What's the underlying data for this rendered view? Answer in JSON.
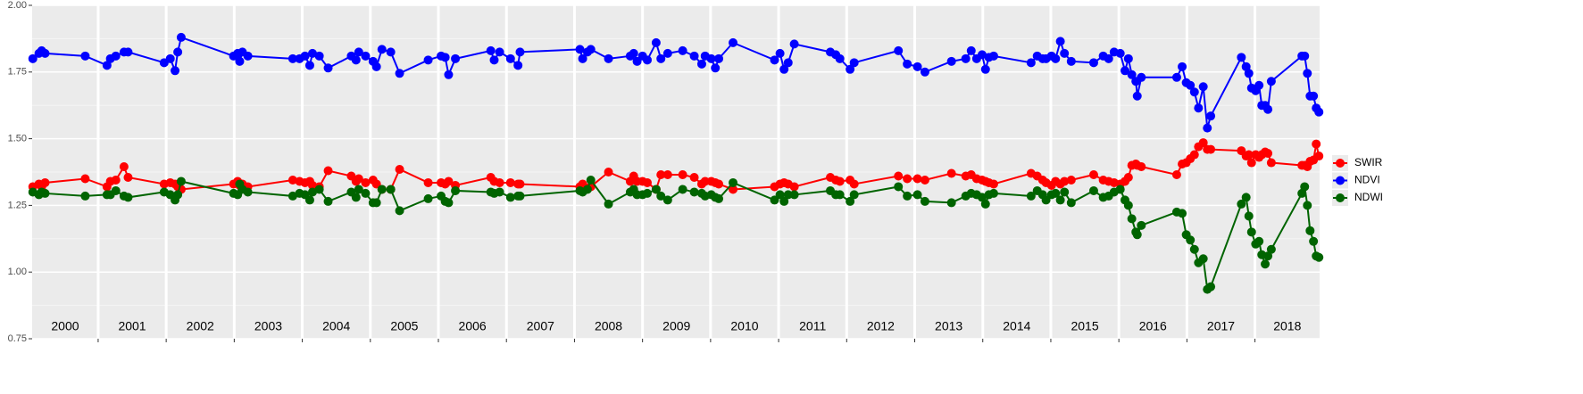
{
  "chart_data": {
    "type": "line",
    "x": [
      2000.04,
      2000.13,
      2000.17,
      2000.22,
      2000.81,
      2001.13,
      2001.18,
      2001.26,
      2001.38,
      2001.44,
      2001.97,
      2002.06,
      2002.13,
      2002.17,
      2002.22,
      2002.99,
      2003.05,
      2003.08,
      2003.12,
      2003.2,
      2003.86,
      2003.96,
      2004.04,
      2004.11,
      2004.15,
      2004.25,
      2004.38,
      2004.72,
      2004.79,
      2004.83,
      2004.93,
      2005.04,
      2005.09,
      2005.17,
      2005.3,
      2005.43,
      2005.85,
      2006.04,
      2006.1,
      2006.15,
      2006.25,
      2006.77,
      2006.82,
      2006.9,
      2007.06,
      2007.17,
      2007.2,
      2008.08,
      2008.12,
      2008.19,
      2008.24,
      2008.5,
      2008.82,
      2008.87,
      2008.92,
      2009.0,
      2009.07,
      2009.2,
      2009.27,
      2009.37,
      2009.59,
      2009.76,
      2009.87,
      2009.92,
      2010.01,
      2010.07,
      2010.12,
      2010.33,
      2010.94,
      2011.02,
      2011.08,
      2011.14,
      2011.23,
      2011.76,
      2011.84,
      2011.9,
      2012.05,
      2012.11,
      2012.76,
      2012.89,
      2013.04,
      2013.15,
      2013.54,
      2013.75,
      2013.83,
      2013.91,
      2013.99,
      2014.04,
      2014.09,
      2014.16,
      2014.71,
      2014.8,
      2014.88,
      2014.93,
      2015.01,
      2015.07,
      2015.14,
      2015.2,
      2015.3,
      2015.63,
      2015.77,
      2015.85,
      2015.93,
      2016.02,
      2016.09,
      2016.14,
      2016.19,
      2016.25,
      2016.27,
      2016.33,
      2016.85,
      2016.93,
      2016.99,
      2017.05,
      2017.11,
      2017.17,
      2017.24,
      2017.3,
      2017.35,
      2017.8,
      2017.87,
      2017.91,
      2017.95,
      2018.01,
      2018.06,
      2018.1,
      2018.15,
      2018.19,
      2018.24,
      2018.69,
      2018.73,
      2018.77,
      2018.81,
      2018.86,
      2018.9,
      2018.94
    ],
    "series": [
      {
        "name": "SWIR",
        "color": "#ff0000",
        "values": [
          1.32,
          1.33,
          1.32,
          1.335,
          1.35,
          1.32,
          1.34,
          1.345,
          1.395,
          1.355,
          1.33,
          1.335,
          1.33,
          1.32,
          1.31,
          1.33,
          1.34,
          1.325,
          1.33,
          1.32,
          1.345,
          1.34,
          1.335,
          1.34,
          1.325,
          1.32,
          1.38,
          1.36,
          1.34,
          1.35,
          1.335,
          1.345,
          1.33,
          1.31,
          1.31,
          1.385,
          1.335,
          1.335,
          1.33,
          1.34,
          1.325,
          1.355,
          1.34,
          1.335,
          1.335,
          1.33,
          1.33,
          1.32,
          1.33,
          1.315,
          1.32,
          1.375,
          1.34,
          1.36,
          1.34,
          1.34,
          1.335,
          1.31,
          1.365,
          1.365,
          1.365,
          1.355,
          1.33,
          1.34,
          1.34,
          1.335,
          1.33,
          1.31,
          1.32,
          1.33,
          1.335,
          1.33,
          1.32,
          1.355,
          1.345,
          1.34,
          1.345,
          1.33,
          1.36,
          1.35,
          1.35,
          1.345,
          1.37,
          1.36,
          1.365,
          1.35,
          1.345,
          1.34,
          1.335,
          1.33,
          1.37,
          1.36,
          1.345,
          1.335,
          1.325,
          1.34,
          1.33,
          1.34,
          1.345,
          1.365,
          1.345,
          1.34,
          1.335,
          1.33,
          1.34,
          1.355,
          1.4,
          1.405,
          1.4,
          1.395,
          1.365,
          1.405,
          1.41,
          1.425,
          1.44,
          1.47,
          1.485,
          1.46,
          1.46,
          1.455,
          1.435,
          1.44,
          1.41,
          1.44,
          1.43,
          1.44,
          1.45,
          1.445,
          1.41,
          1.4,
          1.4,
          1.395,
          1.415,
          1.42,
          1.48,
          1.435
        ]
      },
      {
        "name": "NDVI",
        "color": "#0000ff",
        "values": [
          1.8,
          1.82,
          1.83,
          1.82,
          1.81,
          1.775,
          1.8,
          1.81,
          1.825,
          1.825,
          1.785,
          1.8,
          1.755,
          1.825,
          1.88,
          1.81,
          1.82,
          1.79,
          1.825,
          1.81,
          1.8,
          1.8,
          1.81,
          1.775,
          1.82,
          1.81,
          1.765,
          1.81,
          1.795,
          1.825,
          1.81,
          1.79,
          1.77,
          1.835,
          1.825,
          1.745,
          1.795,
          1.81,
          1.805,
          1.74,
          1.8,
          1.83,
          1.795,
          1.825,
          1.8,
          1.775,
          1.825,
          1.835,
          1.8,
          1.825,
          1.835,
          1.8,
          1.81,
          1.82,
          1.79,
          1.81,
          1.795,
          1.86,
          1.8,
          1.82,
          1.83,
          1.81,
          1.78,
          1.81,
          1.8,
          1.765,
          1.8,
          1.86,
          1.795,
          1.82,
          1.76,
          1.785,
          1.855,
          1.825,
          1.815,
          1.8,
          1.76,
          1.785,
          1.83,
          1.78,
          1.77,
          1.75,
          1.79,
          1.8,
          1.83,
          1.8,
          1.815,
          1.76,
          1.805,
          1.81,
          1.785,
          1.81,
          1.8,
          1.8,
          1.81,
          1.8,
          1.865,
          1.82,
          1.79,
          1.785,
          1.81,
          1.8,
          1.825,
          1.82,
          1.755,
          1.8,
          1.74,
          1.715,
          1.66,
          1.73,
          1.73,
          1.77,
          1.71,
          1.7,
          1.675,
          1.615,
          1.695,
          1.54,
          1.585,
          1.805,
          1.77,
          1.745,
          1.69,
          1.68,
          1.7,
          1.625,
          1.625,
          1.61,
          1.715,
          1.81,
          1.81,
          1.745,
          1.66,
          1.66,
          1.615,
          1.6
        ]
      },
      {
        "name": "NDWI",
        "color": "#006400",
        "values": [
          1.3,
          1.29,
          1.3,
          1.295,
          1.285,
          1.29,
          1.29,
          1.305,
          1.285,
          1.28,
          1.3,
          1.29,
          1.27,
          1.29,
          1.34,
          1.295,
          1.29,
          1.33,
          1.31,
          1.3,
          1.285,
          1.295,
          1.29,
          1.27,
          1.3,
          1.31,
          1.265,
          1.3,
          1.28,
          1.31,
          1.295,
          1.26,
          1.26,
          1.31,
          1.31,
          1.23,
          1.275,
          1.285,
          1.265,
          1.26,
          1.305,
          1.3,
          1.295,
          1.3,
          1.28,
          1.285,
          1.285,
          1.305,
          1.3,
          1.31,
          1.345,
          1.255,
          1.3,
          1.31,
          1.29,
          1.29,
          1.295,
          1.31,
          1.285,
          1.27,
          1.31,
          1.3,
          1.295,
          1.285,
          1.29,
          1.28,
          1.275,
          1.335,
          1.27,
          1.29,
          1.265,
          1.29,
          1.29,
          1.305,
          1.29,
          1.29,
          1.265,
          1.29,
          1.32,
          1.285,
          1.29,
          1.265,
          1.26,
          1.285,
          1.295,
          1.29,
          1.28,
          1.255,
          1.29,
          1.295,
          1.285,
          1.305,
          1.29,
          1.27,
          1.29,
          1.295,
          1.27,
          1.3,
          1.26,
          1.305,
          1.28,
          1.285,
          1.3,
          1.31,
          1.27,
          1.25,
          1.2,
          1.15,
          1.14,
          1.175,
          1.225,
          1.22,
          1.14,
          1.12,
          1.085,
          1.035,
          1.05,
          0.935,
          0.945,
          1.255,
          1.28,
          1.21,
          1.15,
          1.105,
          1.115,
          1.065,
          1.03,
          1.06,
          1.085,
          1.295,
          1.32,
          1.25,
          1.155,
          1.115,
          1.06,
          1.055
        ]
      }
    ],
    "xlim": [
      2000.03,
      2018.95
    ],
    "xticks": [
      2001,
      2002,
      2003,
      2004,
      2005,
      2006,
      2007,
      2008,
      2009,
      2010,
      2011,
      2012,
      2013,
      2014,
      2015,
      2016,
      2017,
      2018
    ],
    "year_labels": [
      "2000",
      "2001",
      "2002",
      "2003",
      "2004",
      "2005",
      "2006",
      "2007",
      "2008",
      "2009",
      "2010",
      "2011",
      "2012",
      "2013",
      "2014",
      "2015",
      "2016",
      "2017",
      "2018"
    ],
    "ylim": [
      0.75,
      2.0
    ],
    "yticks": [
      {
        "value": 0.75,
        "label": "0.75"
      },
      {
        "value": 1.0,
        "label": "1.00"
      },
      {
        "value": 1.25,
        "label": "1.25"
      },
      {
        "value": 1.5,
        "label": "1.50"
      },
      {
        "value": 1.75,
        "label": "1.75"
      },
      {
        "value": 2.0,
        "label": "2.00"
      }
    ],
    "grid": true,
    "legend": "right"
  }
}
